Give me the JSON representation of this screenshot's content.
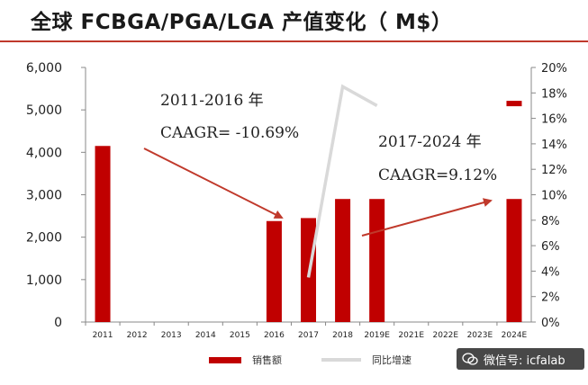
{
  "title": "全球 FCBGA/PGA/LGA 产值变化（ M$）",
  "legend": {
    "bar": "销售额",
    "line": "同比增速"
  },
  "watermark": "微信号: icfalab",
  "annotations": [
    {
      "line1": "2011-2016 年",
      "line2": "CAAGR= -10.69%"
    },
    {
      "line1": "2017-2024 年",
      "line2": "CAAGR=9.12%"
    }
  ],
  "colors": {
    "bar": "#c00000",
    "line": "#d9d9d9",
    "arrow": "#c0392b",
    "accent": "#c0392b"
  },
  "chart_data": {
    "type": "bar",
    "categories": [
      "2011",
      "2012",
      "2013",
      "2014",
      "2015",
      "2016",
      "2017",
      "2018",
      "2019E",
      "2021E",
      "2022E",
      "2023E",
      "2024E"
    ],
    "series": [
      {
        "name": "销售额",
        "type": "bar",
        "axis": "left",
        "values": [
          4150,
          null,
          null,
          null,
          null,
          2380,
          2450,
          2900,
          2900,
          null,
          null,
          null,
          2900
        ]
      },
      {
        "name": "同比增速",
        "type": "line",
        "axis": "right",
        "values": [
          null,
          null,
          null,
          null,
          null,
          null,
          3.5,
          18.5,
          17.0,
          null,
          null,
          null,
          null
        ]
      }
    ],
    "extra_marks": [
      {
        "category": "2024E",
        "value": 5150,
        "axis": "left",
        "style": "small-bar-segment"
      }
    ],
    "left_axis": {
      "ylim": [
        0,
        6000
      ],
      "ticks": [
        "0",
        "1,000",
        "2,000",
        "3,000",
        "4,000",
        "5,000",
        "6,000"
      ]
    },
    "right_axis": {
      "ylim": [
        0,
        20
      ],
      "ticks": [
        "0%",
        "2%",
        "4%",
        "6%",
        "8%",
        "10%",
        "12%",
        "14%",
        "16%",
        "18%",
        "20%"
      ]
    },
    "grid": false,
    "legend_position": "bottom"
  }
}
